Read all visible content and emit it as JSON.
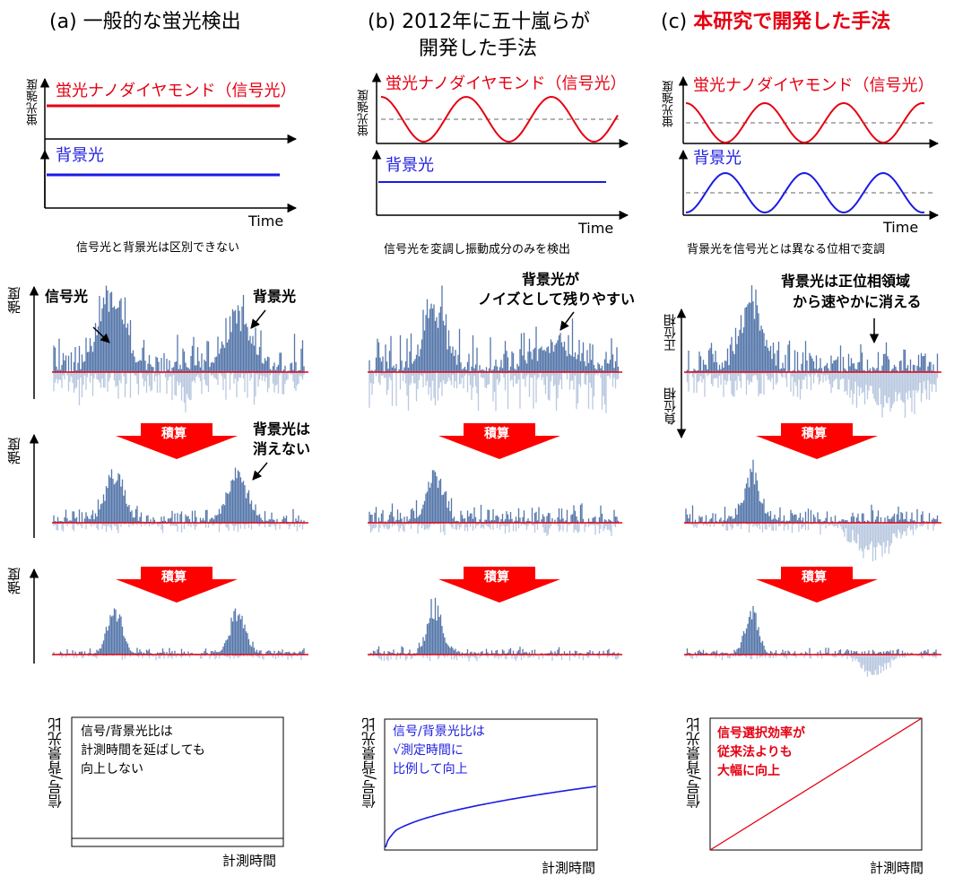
{
  "headers": {
    "a": "(a) 一般的な蛍光検出",
    "b_line1": "(b) 2012年に五十嵐らが",
    "b_line2": "開発した手法",
    "c_prefix": "(c) ",
    "c_red": "本研究で開発した手法"
  },
  "top": {
    "ylabel": "蛍光強度",
    "signal_label": "蛍光ナノダイヤモンド（信号光）",
    "background_label": "背景光",
    "time_label": "Time",
    "caption_a": "信号光と背景光は区別できない",
    "caption_b": "信号光を変調し振動成分のみを検出",
    "caption_c": "背景光を信号光とは異なる位相で変調"
  },
  "middle": {
    "ylabel": "強度",
    "integrate": "積算",
    "a_signal": "信号光",
    "a_background": "背景光",
    "a_note_line1": "背景光は",
    "a_note_line2": "消えない",
    "b_note_line1": "背景光が",
    "b_note_line2": "ノイズとして残りやすい",
    "c_note_line1": "背景光は正位相領域",
    "c_note_line2": "から速やかに消える",
    "c_positive": "正位相",
    "c_negative": "負位相"
  },
  "bottom": {
    "ylabel": "信号/背景光比",
    "xlabel": "計測時間",
    "a_text": [
      "信号/背景光比は",
      "計測時間を延ばしても",
      "向上しない"
    ],
    "b_text": [
      "信号/背景光比は",
      "√測定時間に",
      "比例して向上"
    ],
    "c_text": [
      "信号選択効率が",
      "従来法よりも",
      "大幅に向上"
    ]
  },
  "colors": {
    "red": "#e60012",
    "blue": "#1a1ae6",
    "trace": "#5577aa",
    "trace_light": "#b9c8e0"
  }
}
